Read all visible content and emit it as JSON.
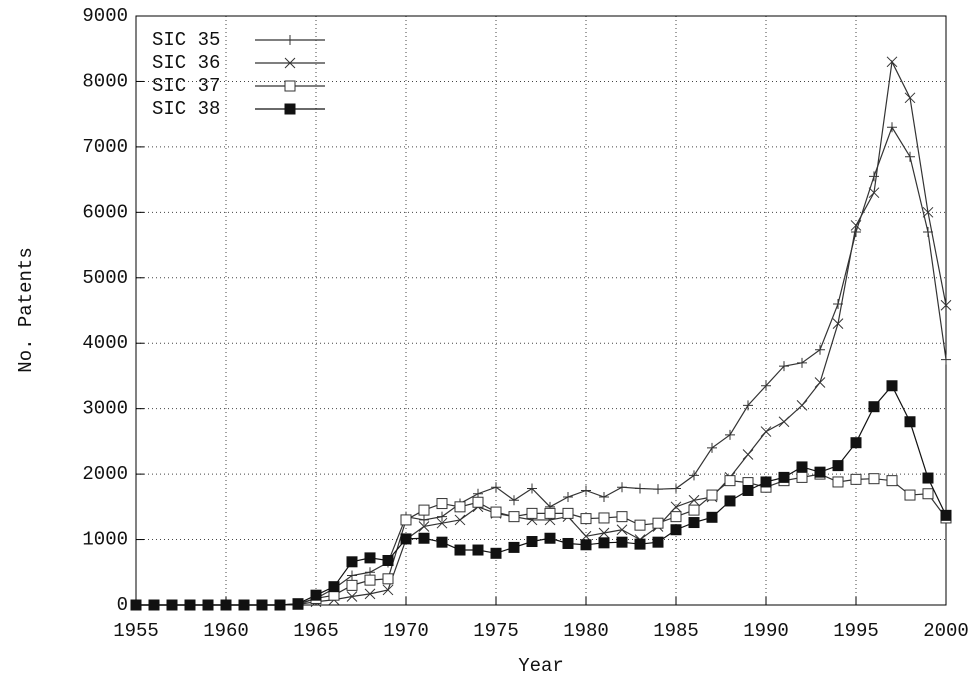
{
  "chart_data": {
    "type": "line",
    "x_label": "Year",
    "y_label": "No. Patents",
    "x": [
      1955,
      1956,
      1957,
      1958,
      1959,
      1960,
      1961,
      1962,
      1963,
      1964,
      1965,
      1966,
      1967,
      1968,
      1969,
      1970,
      1971,
      1972,
      1973,
      1974,
      1975,
      1976,
      1977,
      1978,
      1979,
      1980,
      1981,
      1982,
      1983,
      1984,
      1985,
      1986,
      1987,
      1988,
      1989,
      1990,
      1991,
      1992,
      1993,
      1994,
      1995,
      1996,
      1997,
      1998,
      1999,
      2000
    ],
    "series": [
      {
        "name": "SIC 35",
        "color": "#333333",
        "marker": "plus",
        "values": [
          0,
          0,
          0,
          0,
          0,
          0,
          0,
          0,
          0,
          20,
          100,
          250,
          450,
          500,
          650,
          1350,
          1300,
          1350,
          1550,
          1700,
          1800,
          1600,
          1780,
          1500,
          1650,
          1750,
          1650,
          1800,
          1780,
          1770,
          1780,
          1980,
          2400,
          2600,
          3050,
          3350,
          3650,
          3700,
          3900,
          4600,
          5700,
          6550,
          7300,
          6850,
          5700,
          3750
        ]
      },
      {
        "name": "SIC 36",
        "color": "#333333",
        "marker": "cross",
        "values": [
          0,
          0,
          0,
          0,
          0,
          0,
          0,
          0,
          0,
          10,
          50,
          80,
          130,
          170,
          230,
          1000,
          1200,
          1250,
          1300,
          1500,
          1400,
          1350,
          1300,
          1300,
          1350,
          1050,
          1100,
          1150,
          1000,
          1200,
          1500,
          1600,
          1650,
          1950,
          2300,
          2650,
          2800,
          3050,
          3400,
          4300,
          5800,
          6300,
          8300,
          7750,
          6000,
          4580
        ]
      },
      {
        "name": "SIC 37",
        "color": "#333333",
        "marker": "open-square",
        "values": [
          0,
          0,
          0,
          0,
          0,
          0,
          0,
          0,
          0,
          10,
          100,
          150,
          300,
          380,
          400,
          1300,
          1450,
          1550,
          1500,
          1570,
          1420,
          1350,
          1400,
          1400,
          1400,
          1320,
          1330,
          1350,
          1220,
          1250,
          1350,
          1450,
          1680,
          1900,
          1870,
          1800,
          1900,
          1950,
          2000,
          1880,
          1920,
          1930,
          1900,
          1680,
          1700,
          1330
        ]
      },
      {
        "name": "SIC 38",
        "color": "#111111",
        "marker": "filled-square",
        "values": [
          0,
          0,
          0,
          0,
          0,
          0,
          0,
          0,
          0,
          20,
          150,
          280,
          660,
          720,
          680,
          1010,
          1020,
          960,
          840,
          840,
          790,
          880,
          970,
          1020,
          940,
          920,
          950,
          960,
          930,
          960,
          1150,
          1260,
          1340,
          1590,
          1750,
          1880,
          1950,
          2110,
          2030,
          2130,
          2480,
          3030,
          3350,
          2800,
          1940,
          1370
        ]
      }
    ],
    "xlim": [
      1955,
      2000
    ],
    "xticks": [
      1955,
      1960,
      1965,
      1970,
      1975,
      1980,
      1985,
      1990,
      1995,
      2000
    ],
    "ylim": [
      0,
      9000
    ],
    "yticks": [
      0,
      1000,
      2000,
      3000,
      4000,
      5000,
      6000,
      7000,
      8000,
      9000
    ],
    "grid": true,
    "legend": "top-left"
  }
}
